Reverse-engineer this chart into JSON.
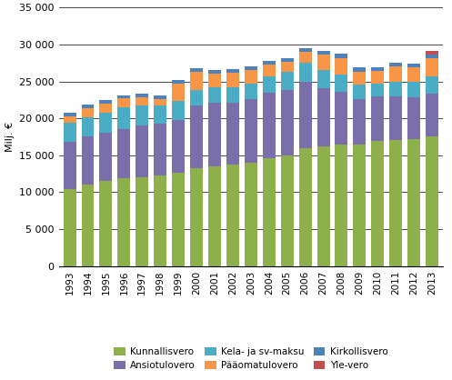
{
  "years": [
    "1993",
    "1994",
    "1995",
    "1996",
    "1997",
    "1998",
    "1999",
    "2000",
    "2001",
    "2002",
    "2003",
    "2004",
    "2005",
    "2006",
    "2007",
    "2008",
    "2009",
    "2010",
    "2011",
    "2012",
    "2013"
  ],
  "kunnallisvero": [
    10400,
    11000,
    11500,
    11900,
    12000,
    12300,
    12600,
    13200,
    13500,
    13700,
    14000,
    14600,
    15000,
    16000,
    16200,
    16500,
    16500,
    17000,
    17100,
    17200,
    17600
  ],
  "ansiotulovero": [
    6400,
    6500,
    6500,
    6700,
    7000,
    7000,
    7200,
    8600,
    8600,
    8400,
    8600,
    8900,
    8800,
    8900,
    7900,
    7100,
    6100,
    6000,
    5900,
    5700,
    5800
  ],
  "kela_sv_maksu": [
    2600,
    2700,
    2800,
    2900,
    2800,
    2400,
    2500,
    2100,
    2100,
    2100,
    2100,
    2200,
    2500,
    2600,
    2400,
    2300,
    2000,
    1700,
    2000,
    2100,
    2300
  ],
  "paaomatulovero": [
    900,
    1200,
    1200,
    1200,
    1000,
    900,
    2400,
    2400,
    1900,
    2000,
    1900,
    1600,
    1300,
    1500,
    2100,
    2300,
    1700,
    1700,
    2000,
    1900,
    2400
  ],
  "kirkollisvero": [
    400,
    450,
    450,
    450,
    500,
    500,
    500,
    500,
    500,
    500,
    500,
    520,
    520,
    550,
    550,
    570,
    560,
    550,
    560,
    560,
    570
  ],
  "yle_vero": [
    0,
    0,
    0,
    0,
    0,
    0,
    0,
    0,
    0,
    0,
    0,
    0,
    0,
    0,
    0,
    0,
    0,
    0,
    0,
    0,
    450
  ],
  "colors": {
    "kunnallisvero": "#8db04c",
    "ansiotulovero": "#7b6faa",
    "kela_sv_maksu": "#4bacc6",
    "paaomatulovero": "#f79646",
    "kirkollisvero": "#4f81bd",
    "yle_vero": "#c0504d"
  },
  "legend_labels": {
    "kunnallisvero": "Kunnallisvero",
    "ansiotulovero": "Ansiotulovero",
    "kela_sv_maksu": "Kela- ja sv-maksu",
    "paaomatulovero": "Pääomatulovero",
    "kirkollisvero": "Kirkollisvero",
    "yle_vero": "Yle-vero"
  },
  "ylabel": "Milj. €",
  "ylim": [
    0,
    35000
  ],
  "yticks": [
    0,
    5000,
    10000,
    15000,
    20000,
    25000,
    30000,
    35000
  ],
  "background_color": "#ffffff",
  "grid_color": "#000000"
}
